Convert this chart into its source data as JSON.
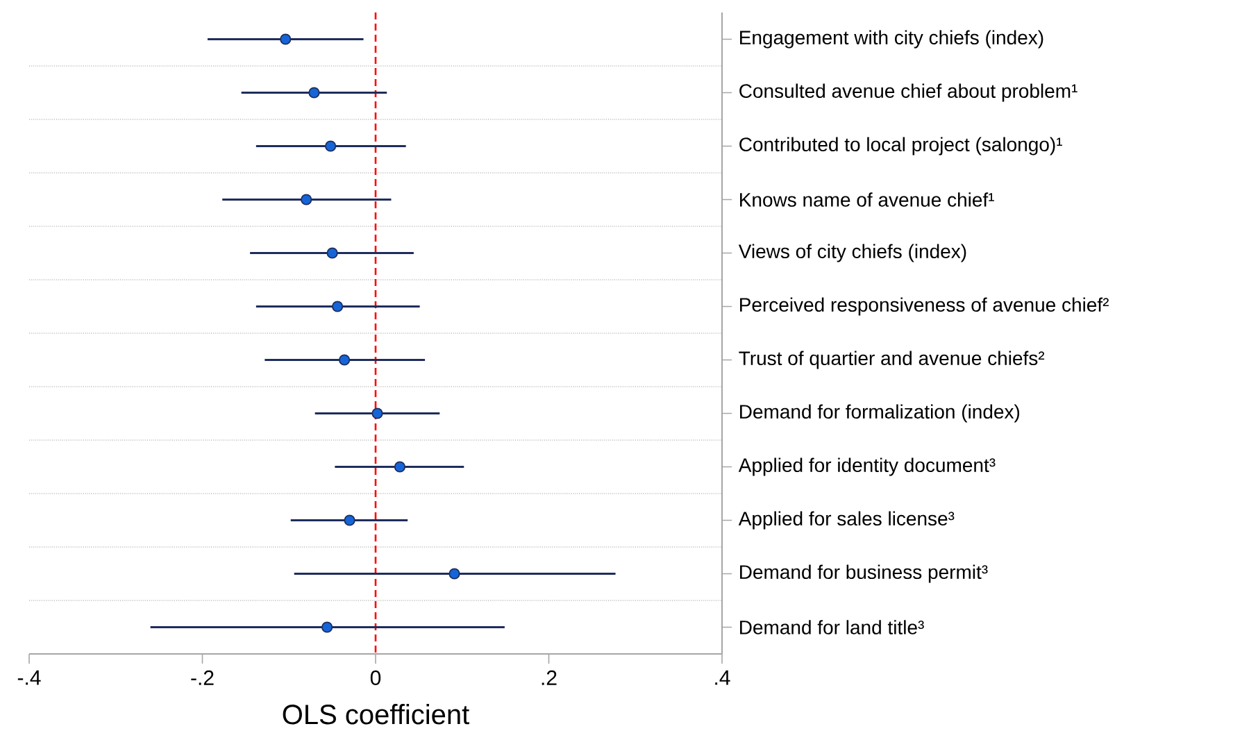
{
  "chart_data": {
    "type": "scatter",
    "orientation": "horizontal",
    "xlabel": "OLS coefficient",
    "categories": [
      "Engagement with city chiefs (index)",
      "Consulted avenue chief about problem¹",
      "Contributed to local project (salongo)¹",
      "Knows name of avenue chief¹",
      "Views of city chiefs (index)",
      "Perceived responsiveness of avenue chief²",
      "Trust of quartier and avenue chiefs²",
      "Demand for formalization (index)",
      "Applied for identity document³",
      "Applied for sales license³",
      "Demand for business permit³",
      "Demand for land title³"
    ],
    "values": [
      -0.104,
      -0.071,
      -0.052,
      -0.08,
      -0.05,
      -0.044,
      -0.036,
      0.002,
      0.028,
      -0.03,
      0.091,
      -0.056
    ],
    "errors": [
      [
        -0.194,
        -0.014
      ],
      [
        -0.155,
        0.013
      ],
      [
        -0.138,
        0.035
      ],
      [
        -0.177,
        0.018
      ],
      [
        -0.145,
        0.044
      ],
      [
        -0.138,
        0.051
      ],
      [
        -0.128,
        0.057
      ],
      [
        -0.07,
        0.074
      ],
      [
        -0.047,
        0.102
      ],
      [
        -0.098,
        0.037
      ],
      [
        -0.094,
        0.277
      ],
      [
        -0.26,
        0.149
      ]
    ],
    "color": "#1565d8",
    "marker": "circle",
    "grid": "y",
    "xlim": [
      -0.4,
      0.4
    ],
    "xticks": [
      {
        "value": -0.4,
        "label": "-.4"
      },
      {
        "value": -0.2,
        "label": "-.2"
      },
      0,
      {
        "value": 0.2,
        "label": ".2"
      },
      {
        "value": 0.4,
        "label": ".4"
      }
    ],
    "ref_lines": [
      {
        "axis": "x",
        "value": 0,
        "color": "#ff0000",
        "line_style": "dashed"
      }
    ]
  }
}
